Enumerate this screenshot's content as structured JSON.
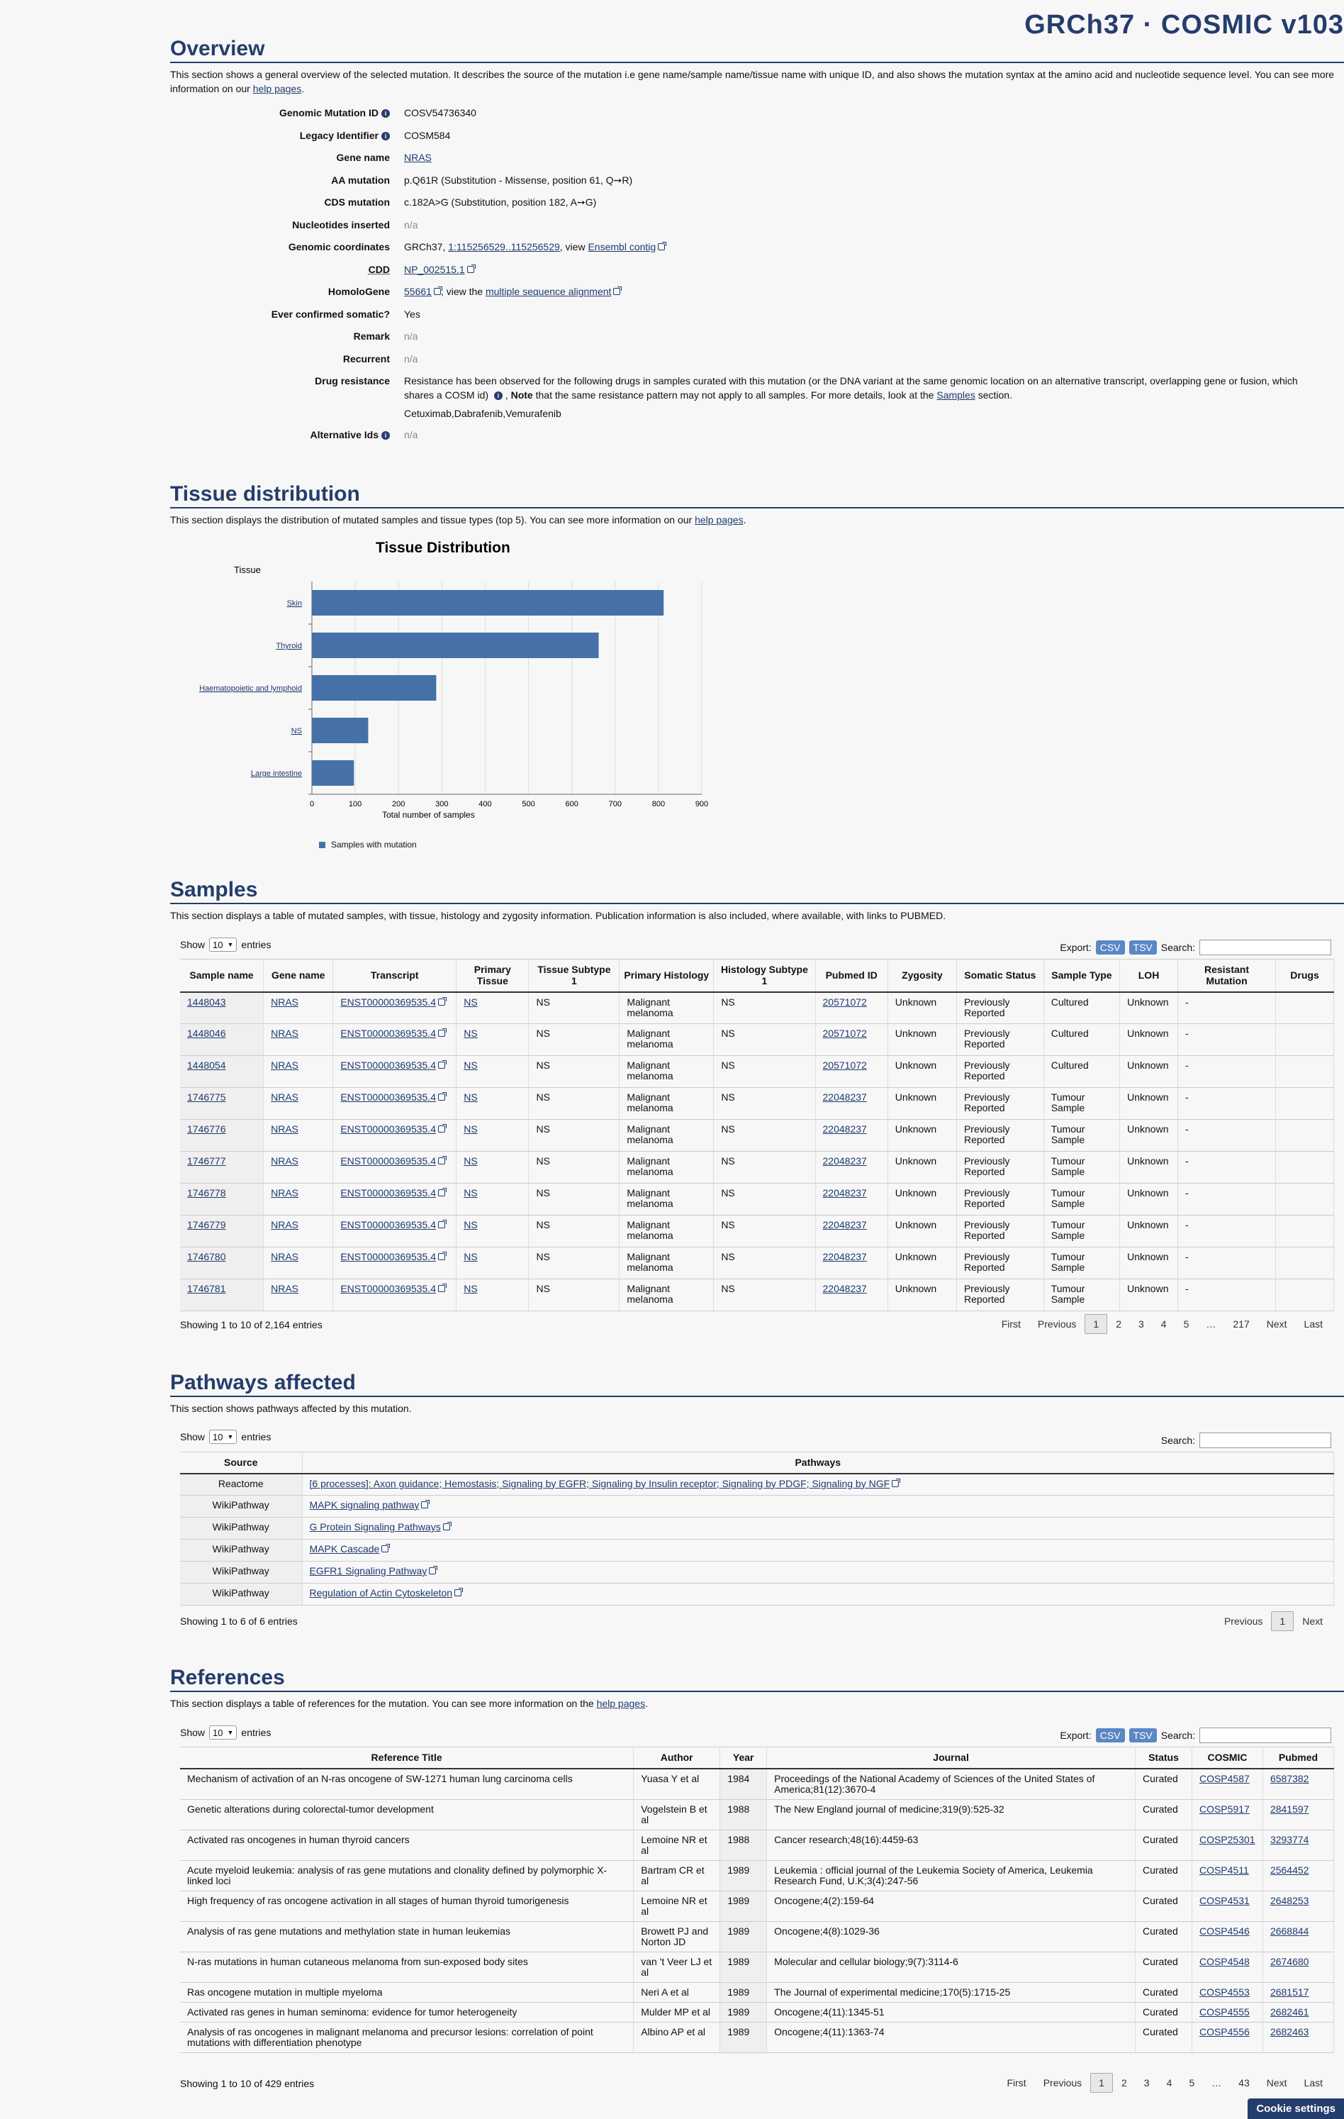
{
  "brand": "GRCh37 · COSMIC v103",
  "overview": {
    "title": "Overview",
    "desc_before": "This section shows a general overview of the selected mutation. It describes the source of the mutation i.e gene name/sample name/tissue name with unique ID, and also shows the mutation syntax at the amino acid and nucleotide sequence level. You can see more information on our ",
    "help_link": "help pages",
    "desc_after": ".",
    "rows": {
      "genomic_mutation_id": {
        "label": "Genomic Mutation ID",
        "value": "COSV54736340"
      },
      "legacy_identifier": {
        "label": "Legacy Identifier",
        "value": "COSM584"
      },
      "gene_name": {
        "label": "Gene name",
        "value": "NRAS"
      },
      "aa_mutation": {
        "label": "AA mutation",
        "value": "p.Q61R (Substitution - Missense, position 61, Q➙R)"
      },
      "cds_mutation": {
        "label": "CDS mutation",
        "value": "c.182A>G (Substitution, position 182, A➙G)"
      },
      "nucleotides_inserted": {
        "label": "Nucleotides inserted",
        "value": "n/a"
      },
      "genomic_coordinates": {
        "label": "Genomic coordinates",
        "prefix": "GRCh37, ",
        "coord_link": "1:115256529..115256529",
        "mid": ", view ",
        "ensembl_link": "Ensembl contig"
      },
      "cdd": {
        "label": "CDD",
        "value": "NP_002515.1"
      },
      "homologene": {
        "label": "HomoloGene",
        "id_link": "55661",
        "mid": ", view the ",
        "msa_link": "multiple sequence alignment"
      },
      "ever_confirmed": {
        "label": "Ever confirmed somatic?",
        "value": "Yes"
      },
      "remark": {
        "label": "Remark",
        "value": "n/a"
      },
      "recurrent": {
        "label": "Recurrent",
        "value": "n/a"
      },
      "drug_resistance": {
        "label": "Drug resistance",
        "text1": "Resistance has been observed for the following drugs in samples curated with this mutation (or the DNA variant at the same genomic location on an alternative transcript, overlapping gene or fusion, which shares a COSM id) ",
        "text2": " , ",
        "note_bold": "Note",
        "text3": " that the same resistance pattern may not apply to all samples. For more details, look at the ",
        "samples_link": "Samples",
        "text4": " section.",
        "drugs": "Cetuximab,Dabrafenib,Vemurafenib"
      },
      "alternative_ids": {
        "label": "Alternative Ids",
        "value": "n/a"
      }
    }
  },
  "tissue": {
    "title": "Tissue distribution",
    "desc_before": "This section displays the distribution of mutated samples and tissue types (top 5). You can see more information on our ",
    "help_link": "help pages",
    "desc_after": "."
  },
  "chart_data": {
    "type": "bar",
    "orientation": "horizontal",
    "title": "Tissue Distribution",
    "ylabel": "Tissue",
    "xlabel": "Total number of samples",
    "categories": [
      "Skin",
      "Thyroid",
      "Haematopoietic and lymphoid",
      "NS",
      "Large intestine"
    ],
    "series": [
      {
        "name": "Samples with mutation",
        "values": [
          812,
          662,
          287,
          130,
          97
        ]
      }
    ],
    "xlim": [
      0,
      900
    ],
    "xticks": [
      0,
      100,
      200,
      300,
      400,
      500,
      600,
      700,
      800,
      900
    ],
    "grid": true,
    "legend": "bottom-left",
    "bar_color": "#4571a8"
  },
  "samples": {
    "title": "Samples",
    "desc": "This section displays a table of mutated samples, with tissue, histology and zygosity information. Publication information is also included, where available, with links to PUBMED.",
    "show": "Show",
    "show_value": "10",
    "entries": "entries",
    "export": "Export:",
    "csv": "CSV",
    "tsv": "TSV",
    "search": "Search:",
    "columns": [
      "Sample name",
      "Gene name",
      "Transcript",
      "Primary Tissue",
      "Tissue Subtype 1",
      "Primary Histology",
      "Histology Subtype 1",
      "Pubmed ID",
      "Zygosity",
      "Somatic Status",
      "Sample Type",
      "LOH",
      "Resistant Mutation",
      "Drugs"
    ],
    "rows": [
      [
        "1448043",
        "NRAS",
        "ENST00000369535.4",
        "NS",
        "NS",
        "Malignant melanoma",
        "NS",
        "20571072",
        "Unknown",
        "Previously Reported",
        "Cultured",
        "Unknown",
        "-",
        ""
      ],
      [
        "1448046",
        "NRAS",
        "ENST00000369535.4",
        "NS",
        "NS",
        "Malignant melanoma",
        "NS",
        "20571072",
        "Unknown",
        "Previously Reported",
        "Cultured",
        "Unknown",
        "-",
        ""
      ],
      [
        "1448054",
        "NRAS",
        "ENST00000369535.4",
        "NS",
        "NS",
        "Malignant melanoma",
        "NS",
        "20571072",
        "Unknown",
        "Previously Reported",
        "Cultured",
        "Unknown",
        "-",
        ""
      ],
      [
        "1746775",
        "NRAS",
        "ENST00000369535.4",
        "NS",
        "NS",
        "Malignant melanoma",
        "NS",
        "22048237",
        "Unknown",
        "Previously Reported",
        "Tumour Sample",
        "Unknown",
        "-",
        ""
      ],
      [
        "1746776",
        "NRAS",
        "ENST00000369535.4",
        "NS",
        "NS",
        "Malignant melanoma",
        "NS",
        "22048237",
        "Unknown",
        "Previously Reported",
        "Tumour Sample",
        "Unknown",
        "-",
        ""
      ],
      [
        "1746777",
        "NRAS",
        "ENST00000369535.4",
        "NS",
        "NS",
        "Malignant melanoma",
        "NS",
        "22048237",
        "Unknown",
        "Previously Reported",
        "Tumour Sample",
        "Unknown",
        "-",
        ""
      ],
      [
        "1746778",
        "NRAS",
        "ENST00000369535.4",
        "NS",
        "NS",
        "Malignant melanoma",
        "NS",
        "22048237",
        "Unknown",
        "Previously Reported",
        "Tumour Sample",
        "Unknown",
        "-",
        ""
      ],
      [
        "1746779",
        "NRAS",
        "ENST00000369535.4",
        "NS",
        "NS",
        "Malignant melanoma",
        "NS",
        "22048237",
        "Unknown",
        "Previously Reported",
        "Tumour Sample",
        "Unknown",
        "-",
        ""
      ],
      [
        "1746780",
        "NRAS",
        "ENST00000369535.4",
        "NS",
        "NS",
        "Malignant melanoma",
        "NS",
        "22048237",
        "Unknown",
        "Previously Reported",
        "Tumour Sample",
        "Unknown",
        "-",
        ""
      ],
      [
        "1746781",
        "NRAS",
        "ENST00000369535.4",
        "NS",
        "NS",
        "Malignant melanoma",
        "NS",
        "22048237",
        "Unknown",
        "Previously Reported",
        "Tumour Sample",
        "Unknown",
        "-",
        ""
      ]
    ],
    "showing": "Showing 1 to 10 of 2,164 entries",
    "pager": [
      "First",
      "Previous",
      "1",
      "2",
      "3",
      "4",
      "5",
      "…",
      "217",
      "Next",
      "Last"
    ]
  },
  "pathways": {
    "title": "Pathways affected",
    "desc": "This section shows pathways affected by this mutation.",
    "show": "Show",
    "show_value": "10",
    "entries": "entries",
    "search": "Search:",
    "columns": [
      "Source",
      "Pathways"
    ],
    "rows": [
      [
        "Reactome",
        "[6 processes]: Axon guidance; Hemostasis; Signaling by EGFR; Signaling by Insulin receptor; Signaling by PDGF; Signaling by NGF"
      ],
      [
        "WikiPathway",
        "MAPK signaling pathway"
      ],
      [
        "WikiPathway",
        "G Protein Signaling Pathways"
      ],
      [
        "WikiPathway",
        "MAPK Cascade"
      ],
      [
        "WikiPathway",
        "EGFR1 Signaling Pathway"
      ],
      [
        "WikiPathway",
        "Regulation of Actin Cytoskeleton"
      ]
    ],
    "showing": "Showing 1 to 6 of 6 entries",
    "pager": [
      "Previous",
      "1",
      "Next"
    ]
  },
  "references": {
    "title": "References",
    "desc_before": "This section displays a table of references for the mutation. You can see more information on the ",
    "help_link": "help pages",
    "desc_after": ".",
    "show": "Show",
    "show_value": "10",
    "entries": "entries",
    "export": "Export:",
    "csv": "CSV",
    "tsv": "TSV",
    "search": "Search:",
    "columns": [
      "Reference Title",
      "Author",
      "Year",
      "Journal",
      "Status",
      "COSMIC",
      "Pubmed"
    ],
    "rows": [
      [
        "Mechanism of activation of an N-ras oncogene of SW-1271 human lung carcinoma cells",
        "Yuasa Y et al",
        "1984",
        "Proceedings of the National Academy of Sciences of the United States of America;81(12):3670-4",
        "Curated",
        "COSP4587",
        "6587382"
      ],
      [
        "Genetic alterations during colorectal-tumor development",
        "Vogelstein B et al",
        "1988",
        "The New England journal of medicine;319(9):525-32",
        "Curated",
        "COSP5917",
        "2841597"
      ],
      [
        "Activated ras oncogenes in human thyroid cancers",
        "Lemoine NR et al",
        "1988",
        "Cancer research;48(16):4459-63",
        "Curated",
        "COSP25301",
        "3293774"
      ],
      [
        "Acute myeloid leukemia: analysis of ras gene mutations and clonality defined by polymorphic X-linked loci",
        "Bartram CR et al",
        "1989",
        "Leukemia : official journal of the Leukemia Society of America, Leukemia Research Fund, U.K;3(4):247-56",
        "Curated",
        "COSP4511",
        "2564452"
      ],
      [
        "High frequency of ras oncogene activation in all stages of human thyroid tumorigenesis",
        "Lemoine NR et al",
        "1989",
        "Oncogene;4(2):159-64",
        "Curated",
        "COSP4531",
        "2648253"
      ],
      [
        "Analysis of ras gene mutations and methylation state in human leukemias",
        "Browett PJ and Norton JD",
        "1989",
        "Oncogene;4(8):1029-36",
        "Curated",
        "COSP4546",
        "2668844"
      ],
      [
        "N-ras mutations in human cutaneous melanoma from sun-exposed body sites",
        "van 't Veer LJ et al",
        "1989",
        "Molecular and cellular biology;9(7):3114-6",
        "Curated",
        "COSP4548",
        "2674680"
      ],
      [
        "Ras oncogene mutation in multiple myeloma",
        "Neri A et al",
        "1989",
        "The Journal of experimental medicine;170(5):1715-25",
        "Curated",
        "COSP4553",
        "2681517"
      ],
      [
        "Activated ras genes in human seminoma: evidence for tumor heterogeneity",
        "Mulder MP et al",
        "1989",
        "Oncogene;4(11):1345-51",
        "Curated",
        "COSP4555",
        "2682461"
      ],
      [
        "Analysis of ras oncogenes in malignant melanoma and precursor lesions: correlation of point mutations with differentiation phenotype",
        "Albino AP et al",
        "1989",
        "Oncogene;4(11):1363-74",
        "Curated",
        "COSP4556",
        "2682463"
      ]
    ],
    "showing": "Showing 1 to 10 of 429 entries",
    "pager": [
      "First",
      "Previous",
      "1",
      "2",
      "3",
      "4",
      "5",
      "…",
      "43",
      "Next",
      "Last"
    ]
  },
  "cookie": "Cookie settings",
  "icons": {
    "info": "info-icon",
    "external": "external-link-icon",
    "sort": "sort-icon"
  }
}
